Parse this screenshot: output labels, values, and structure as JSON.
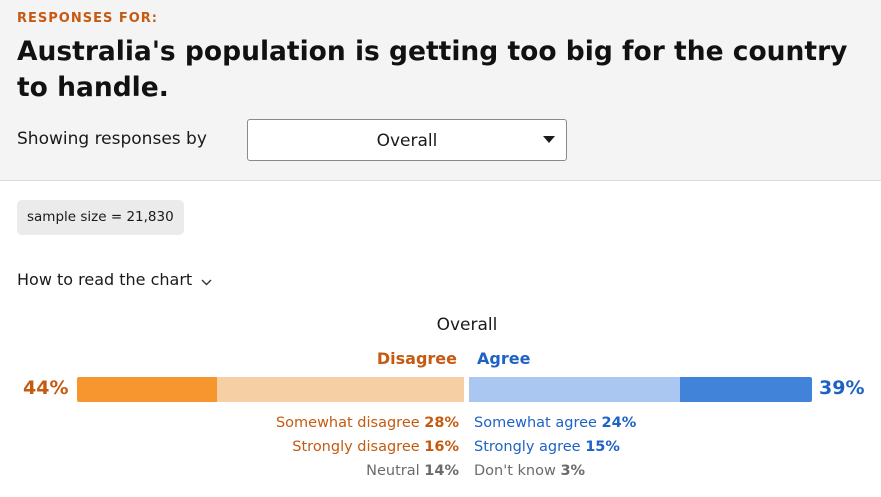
{
  "header": {
    "eyebrow": "RESPONSES FOR:",
    "title": "Australia's population is getting too big for the country to handle.",
    "filter_label": "Showing responses by",
    "filter_value": "Overall",
    "filter_icon": "caret-down-icon"
  },
  "sample": {
    "label": "sample size = 21,830"
  },
  "howto": {
    "label": "How to read the chart",
    "icon": "chevron-down-icon"
  },
  "colors": {
    "disagree_text": "#c55a11",
    "agree_text": "#1e63c4",
    "strongly_disagree": "#f7962e",
    "somewhat_disagree": "#f7cfa4",
    "somewhat_agree": "#a9c7f1",
    "strongly_agree": "#4283da"
  },
  "chart_data": {
    "type": "bar",
    "title": "Overall",
    "side_labels": {
      "disagree": "Disagree",
      "agree": "Agree"
    },
    "totals": {
      "disagree": "44%",
      "agree": "39%"
    },
    "segments": [
      {
        "name": "Strongly disagree",
        "value": 16
      },
      {
        "name": "Somewhat disagree",
        "value": 28
      },
      {
        "name": "Somewhat agree",
        "value": 24
      },
      {
        "name": "Strongly agree",
        "value": 15
      }
    ],
    "legend": {
      "somewhat_disagree": {
        "label": "Somewhat disagree",
        "value": "28%"
      },
      "strongly_disagree": {
        "label": "Strongly disagree",
        "value": "16%"
      },
      "neutral": {
        "label": "Neutral",
        "value": "14%"
      },
      "somewhat_agree": {
        "label": "Somewhat agree",
        "value": "24%"
      },
      "strongly_agree": {
        "label": "Strongly agree",
        "value": "15%"
      },
      "dont_know": {
        "label": "Don't know",
        "value": "3%"
      }
    }
  }
}
